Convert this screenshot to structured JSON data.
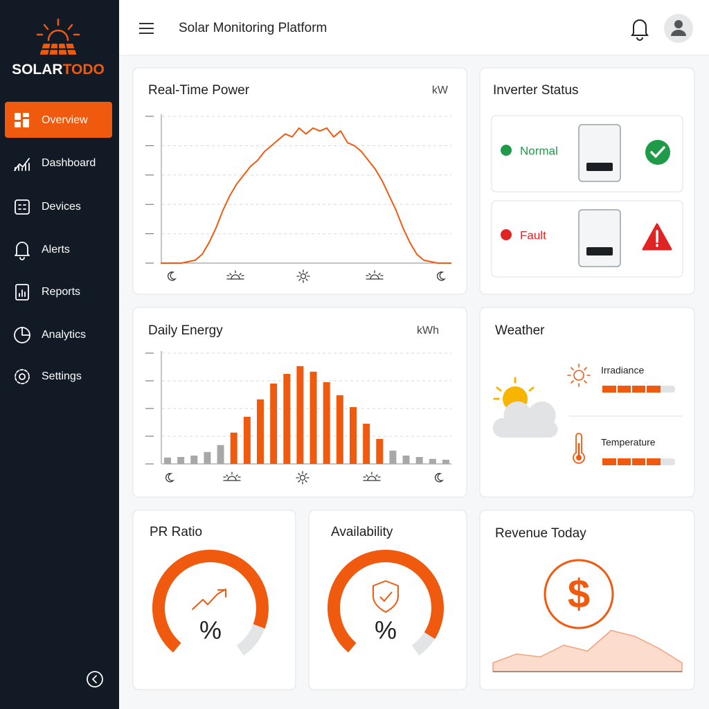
{
  "sidebar": {
    "brand": [
      "SOLAR",
      "TODO"
    ],
    "nav": [
      "Overview",
      "Dashboard",
      "Devices",
      "Alerts",
      "Reports",
      "Analytics",
      "Settings"
    ]
  },
  "header": {
    "title": "Solar Monitoring Platform"
  },
  "real_time_power": {
    "title": "Real-Time Power",
    "unit": "kW"
  },
  "daily_energy": {
    "title": "Daily Energy",
    "unit": "kWh"
  },
  "inverter_status": {
    "title": "Inverter Status",
    "items": [
      "Normal",
      "Fault"
    ]
  },
  "weather": {
    "title": "Weather",
    "metrics": [
      {
        "label": "Irradiance",
        "value": 4,
        "range": [
          0,
          5
        ]
      },
      {
        "label": "Temperature",
        "value": 4,
        "range": [
          0,
          5
        ]
      }
    ]
  },
  "gauges": [
    {
      "title": "PR Ratio",
      "unit": "%",
      "value": 88,
      "range": [
        0,
        100
      ]
    },
    {
      "title": "Availability",
      "unit": "%",
      "value": 92,
      "range": [
        0,
        100
      ]
    }
  ],
  "revenue": {
    "title": "Revenue Today"
  },
  "chart_data": [
    {
      "type": "line",
      "color": "#f05a0f",
      "ylim": [
        0,
        5
      ],
      "yticks": [
        0,
        1,
        2,
        3,
        4,
        5
      ],
      "grid": true,
      "values": [
        0,
        0,
        0,
        0,
        0.05,
        0.1,
        0.3,
        0.7,
        1.2,
        1.8,
        2.3,
        2.7,
        3.0,
        3.3,
        3.5,
        3.8,
        4.0,
        4.2,
        4.4,
        4.3,
        4.6,
        4.4,
        4.6,
        4.5,
        4.6,
        4.3,
        4.5,
        4.1,
        4.0,
        3.8,
        3.5,
        3.2,
        2.8,
        2.3,
        1.8,
        1.2,
        0.7,
        0.3,
        0.1,
        0.05,
        0,
        0,
        0
      ]
    },
    {
      "type": "bar",
      "ylim": [
        0,
        4
      ],
      "yticks": [
        0,
        1,
        2,
        3,
        4
      ],
      "grid": true,
      "values": [
        0.23,
        0.25,
        0.3,
        0.43,
        0.68,
        1.13,
        1.7,
        2.33,
        2.9,
        3.25,
        3.53,
        3.33,
        2.95,
        2.48,
        2.05,
        1.45,
        0.9,
        0.48,
        0.3,
        0.25,
        0.18,
        0.15
      ],
      "colors": [
        "#a8a8a8",
        "#a8a8a8",
        "#a8a8a8",
        "#a8a8a8",
        "#a8a8a8",
        "#f05a0f",
        "#f05a0f",
        "#f05a0f",
        "#f05a0f",
        "#f05a0f",
        "#f05a0f",
        "#f05a0f",
        "#f05a0f",
        "#f05a0f",
        "#f05a0f",
        "#f05a0f",
        "#f05a0f",
        "#a8a8a8",
        "#a8a8a8",
        "#a8a8a8",
        "#a8a8a8",
        "#a8a8a8"
      ]
    },
    {
      "type": "area",
      "color": "#f3a27c",
      "ylim": [
        0,
        2
      ],
      "values": [
        0.3,
        0.6,
        0.5,
        0.9,
        0.7,
        1.4,
        1.2,
        0.8,
        0.3
      ]
    }
  ]
}
